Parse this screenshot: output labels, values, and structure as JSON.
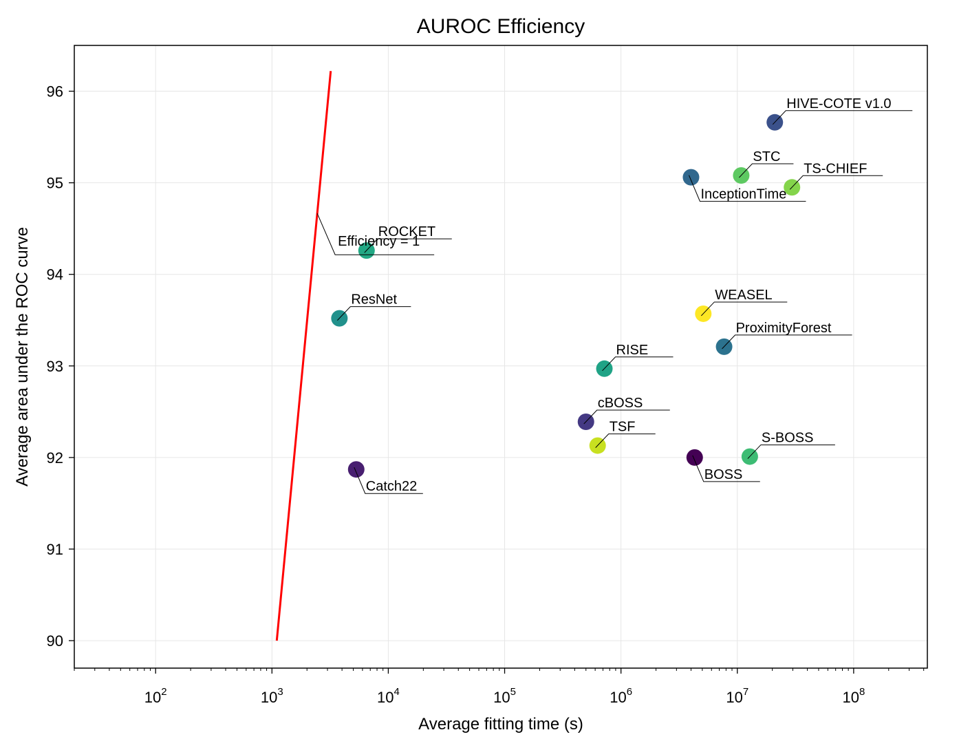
{
  "chart_data": {
    "type": "scatter",
    "title": "AUROC Efficiency",
    "xlabel": "Average fitting time (s)",
    "ylabel": "Average area under the ROC curve",
    "xscale": "log",
    "xlim": [
      20,
      430000000
    ],
    "ylim": [
      89.7,
      96.5
    ],
    "x_tick_base": "10",
    "x_tick_exponents": [
      "2",
      "3",
      "4",
      "5",
      "6",
      "7",
      "8"
    ],
    "y_ticks": [
      "90",
      "91",
      "92",
      "93",
      "94",
      "95",
      "96"
    ],
    "grid": true,
    "points": [
      {
        "label": "HIVE-COTE v1.0",
        "x": 21000000,
        "y": 95.66,
        "color": "#3b518b"
      },
      {
        "label": "STC",
        "x": 10800000,
        "y": 95.08,
        "color": "#5ec962"
      },
      {
        "label": "TS-CHIEF",
        "x": 29500000,
        "y": 94.95,
        "color": "#84d44b"
      },
      {
        "label": "InceptionTime",
        "x": 4000000,
        "y": 95.06,
        "color": "#31688e"
      },
      {
        "label": "ROCKET",
        "x": 6500,
        "y": 94.26,
        "color": "#22a884"
      },
      {
        "label": "ResNet",
        "x": 3800,
        "y": 93.52,
        "color": "#21918c"
      },
      {
        "label": "WEASEL",
        "x": 5100000,
        "y": 93.57,
        "color": "#fde725"
      },
      {
        "label": "ProximityForest",
        "x": 7700000,
        "y": 93.21,
        "color": "#2c728e"
      },
      {
        "label": "RISE",
        "x": 720000,
        "y": 92.97,
        "color": "#20a386"
      },
      {
        "label": "cBOSS",
        "x": 500000,
        "y": 92.39,
        "color": "#443983"
      },
      {
        "label": "TSF",
        "x": 630000,
        "y": 92.13,
        "color": "#c8e020"
      },
      {
        "label": "S-BOSS",
        "x": 12800000,
        "y": 92.01,
        "color": "#3dbc74"
      },
      {
        "label": "BOSS",
        "x": 4300000,
        "y": 92.0,
        "color": "#440154"
      },
      {
        "label": "Catch22",
        "x": 5300,
        "y": 91.87,
        "color": "#481f70"
      }
    ],
    "efficiency_line": {
      "label": "Efficiency = 1",
      "color": "#ff0000",
      "x": [
        1100,
        3200
      ],
      "y": [
        90.0,
        96.22
      ]
    }
  }
}
